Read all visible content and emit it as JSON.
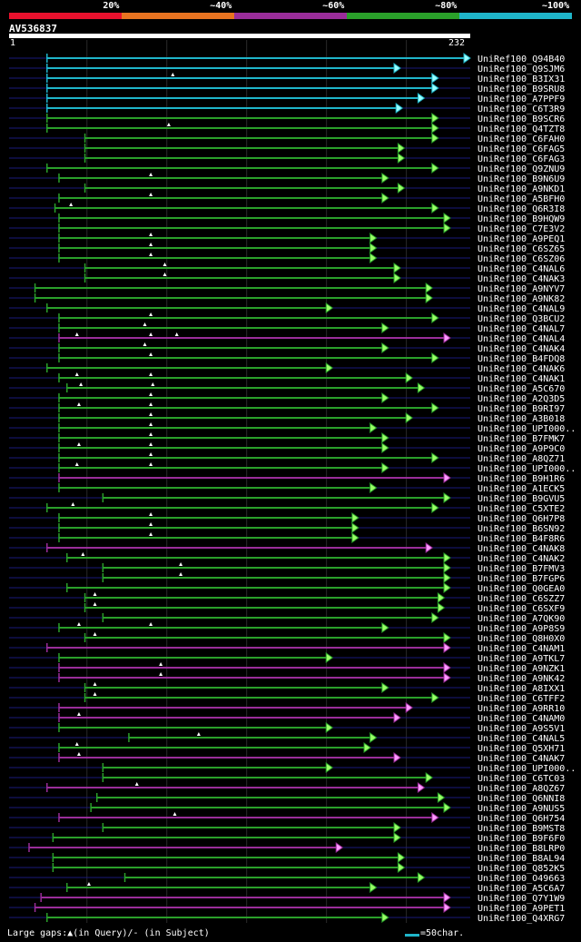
{
  "colors": {
    "bg": "#000000",
    "grid": "#2a2a2a",
    "baseline": "#1a1a7a",
    "c20": "#e8112d",
    "c40": "#e87320",
    "c60": "#9a2d9a",
    "c80": "#2aa02a",
    "c100": "#1fb5c9",
    "arrow_green": "#99ff66",
    "arrow_cyan": "#99ffff",
    "arrow_purple": "#ff99ff",
    "label": "#ffffff"
  },
  "legend": [
    {
      "label": "20%",
      "color": "c20"
    },
    {
      "label": "~40%",
      "color": "c40"
    },
    {
      "label": "~60%",
      "color": "c60"
    },
    {
      "label": "~80%",
      "color": "c80"
    },
    {
      "label": "~100%",
      "color": "c100"
    }
  ],
  "header": {
    "query_id": "AV536837",
    "ruler_start": "1",
    "ruler_end": "232"
  },
  "footer": {
    "gaps_label": "Large gaps:",
    "gaps_query": "(in Query)/",
    "gaps_subject": "- (in Subject)",
    "scale_label": "=50char."
  },
  "chart_data": {
    "type": "alignment",
    "query_length": 232,
    "axis_range": [
      1,
      232
    ],
    "grid_ticks": [
      40,
      80,
      120,
      160,
      200
    ],
    "hits": [
      {
        "name": "UniRef100_Q94B40",
        "start": 20,
        "end": 232,
        "identity": "c100",
        "gaps": []
      },
      {
        "name": "UniRef100_Q9SJM6",
        "start": 20,
        "end": 197,
        "identity": "c100",
        "gaps": []
      },
      {
        "name": "UniRef100_B3IX31",
        "start": 20,
        "end": 216,
        "identity": "c100",
        "gaps": [
          83
        ]
      },
      {
        "name": "UniRef100_B9SRU8",
        "start": 20,
        "end": 216,
        "identity": "c100",
        "gaps": []
      },
      {
        "name": "UniRef100_A7PPF9",
        "start": 20,
        "end": 209,
        "identity": "c100",
        "gaps": []
      },
      {
        "name": "UniRef100_C6T3R9",
        "start": 20,
        "end": 198,
        "identity": "c100",
        "gaps": []
      },
      {
        "name": "UniRef100_B9SCR6",
        "start": 20,
        "end": 216,
        "identity": "c80",
        "gaps": []
      },
      {
        "name": "UniRef100_Q4TZT8",
        "start": 20,
        "end": 216,
        "identity": "c80",
        "gaps": [
          81
        ]
      },
      {
        "name": "UniRef100_C6FAH0",
        "start": 39,
        "end": 216,
        "identity": "c80",
        "gaps": []
      },
      {
        "name": "UniRef100_C6FAG5",
        "start": 39,
        "end": 199,
        "identity": "c80",
        "gaps": []
      },
      {
        "name": "UniRef100_C6FAG3",
        "start": 39,
        "end": 199,
        "identity": "c80",
        "gaps": []
      },
      {
        "name": "UniRef100_Q9ZNU9",
        "start": 20,
        "end": 216,
        "identity": "c80",
        "gaps": []
      },
      {
        "name": "UniRef100_B9N6U9",
        "start": 26,
        "end": 191,
        "identity": "c80",
        "gaps": [
          72
        ]
      },
      {
        "name": "UniRef100_A9NKD1",
        "start": 39,
        "end": 199,
        "identity": "c80",
        "gaps": []
      },
      {
        "name": "UniRef100_A5BFH0",
        "start": 26,
        "end": 191,
        "identity": "c80",
        "gaps": [
          72
        ]
      },
      {
        "name": "UniRef100_Q6R3I8",
        "start": 24,
        "end": 216,
        "identity": "c80",
        "gaps": [
          32
        ]
      },
      {
        "name": "UniRef100_B9HQW9",
        "start": 26,
        "end": 222,
        "identity": "c80",
        "gaps": []
      },
      {
        "name": "UniRef100_C7E3V2",
        "start": 26,
        "end": 222,
        "identity": "c80",
        "gaps": []
      },
      {
        "name": "UniRef100_A9PEQ1",
        "start": 26,
        "end": 185,
        "identity": "c80",
        "gaps": [
          72
        ]
      },
      {
        "name": "UniRef100_C6SZ65",
        "start": 26,
        "end": 185,
        "identity": "c80",
        "gaps": [
          72
        ]
      },
      {
        "name": "UniRef100_C6SZ06",
        "start": 26,
        "end": 185,
        "identity": "c80",
        "gaps": [
          72
        ]
      },
      {
        "name": "UniRef100_C4NAL6",
        "start": 39,
        "end": 197,
        "identity": "c80",
        "gaps": [
          79
        ]
      },
      {
        "name": "UniRef100_C4NAK3",
        "start": 39,
        "end": 197,
        "identity": "c80",
        "gaps": [
          79
        ]
      },
      {
        "name": "UniRef100_A9NYV7",
        "start": 14,
        "end": 213,
        "identity": "c80",
        "gaps": []
      },
      {
        "name": "UniRef100_A9NK82",
        "start": 14,
        "end": 213,
        "identity": "c80",
        "gaps": []
      },
      {
        "name": "UniRef100_C4NAL9",
        "start": 20,
        "end": 163,
        "identity": "c80",
        "gaps": []
      },
      {
        "name": "UniRef100_Q3BCU2",
        "start": 26,
        "end": 216,
        "identity": "c80",
        "gaps": [
          72
        ]
      },
      {
        "name": "UniRef100_C4NAL7",
        "start": 26,
        "end": 191,
        "identity": "c80",
        "gaps": [
          69
        ]
      },
      {
        "name": "UniRef100_C4NAL4",
        "start": 26,
        "end": 222,
        "identity": "c60",
        "gaps": [
          35,
          72,
          85
        ]
      },
      {
        "name": "UniRef100_C4NAK4",
        "start": 26,
        "end": 191,
        "identity": "c80",
        "gaps": [
          69
        ]
      },
      {
        "name": "UniRef100_B4FDQ8",
        "start": 26,
        "end": 216,
        "identity": "c80",
        "gaps": [
          72
        ]
      },
      {
        "name": "UniRef100_C4NAK6",
        "start": 20,
        "end": 163,
        "identity": "c80",
        "gaps": []
      },
      {
        "name": "UniRef100_C4NAK1",
        "start": 26,
        "end": 203,
        "identity": "c80",
        "gaps": [
          35,
          72
        ]
      },
      {
        "name": "UniRef100_A5C670",
        "start": 30,
        "end": 209,
        "identity": "c80",
        "gaps": [
          37,
          73
        ]
      },
      {
        "name": "UniRef100_A2Q3D5",
        "start": 26,
        "end": 191,
        "identity": "c80",
        "gaps": [
          72
        ]
      },
      {
        "name": "UniRef100_B9RI97",
        "start": 26,
        "end": 216,
        "identity": "c80",
        "gaps": [
          36,
          72
        ]
      },
      {
        "name": "UniRef100_A3B018",
        "start": 26,
        "end": 203,
        "identity": "c80",
        "gaps": [
          72
        ]
      },
      {
        "name": "UniRef100_UPI000..",
        "start": 26,
        "end": 185,
        "identity": "c80",
        "gaps": [
          72
        ]
      },
      {
        "name": "UniRef100_B7FMK7",
        "start": 26,
        "end": 191,
        "identity": "c80",
        "gaps": [
          72
        ]
      },
      {
        "name": "UniRef100_A9P9C0",
        "start": 26,
        "end": 191,
        "identity": "c80",
        "gaps": [
          36,
          72
        ]
      },
      {
        "name": "UniRef100_A8QZ71",
        "start": 26,
        "end": 216,
        "identity": "c80",
        "gaps": [
          72
        ]
      },
      {
        "name": "UniRef100_UPI000..",
        "start": 26,
        "end": 191,
        "identity": "c80",
        "gaps": [
          35,
          72
        ]
      },
      {
        "name": "UniRef100_B9H1R6",
        "start": 26,
        "end": 222,
        "identity": "c60",
        "gaps": []
      },
      {
        "name": "UniRef100_A1ECK5",
        "start": 26,
        "end": 185,
        "identity": "c80",
        "gaps": []
      },
      {
        "name": "UniRef100_B9GVU5",
        "start": 48,
        "end": 222,
        "identity": "c80",
        "gaps": []
      },
      {
        "name": "UniRef100_C5XTE2",
        "start": 20,
        "end": 216,
        "identity": "c80",
        "gaps": [
          33
        ]
      },
      {
        "name": "UniRef100_Q6H7P8",
        "start": 26,
        "end": 176,
        "identity": "c80",
        "gaps": [
          72
        ]
      },
      {
        "name": "UniRef100_B6SN92",
        "start": 26,
        "end": 176,
        "identity": "c80",
        "gaps": [
          72
        ]
      },
      {
        "name": "UniRef100_B4F8R6",
        "start": 26,
        "end": 176,
        "identity": "c80",
        "gaps": [
          72
        ]
      },
      {
        "name": "UniRef100_C4NAK8",
        "start": 20,
        "end": 213,
        "identity": "c60",
        "gaps": []
      },
      {
        "name": "UniRef100_C4NAK2",
        "start": 30,
        "end": 222,
        "identity": "c80",
        "gaps": [
          38
        ]
      },
      {
        "name": "UniRef100_B7FMV3",
        "start": 48,
        "end": 222,
        "identity": "c80",
        "gaps": [
          87
        ]
      },
      {
        "name": "UniRef100_B7FGP6",
        "start": 48,
        "end": 222,
        "identity": "c80",
        "gaps": [
          87
        ]
      },
      {
        "name": "UniRef100_Q0GEA0",
        "start": 30,
        "end": 222,
        "identity": "c80",
        "gaps": []
      },
      {
        "name": "UniRef100_C6SZZ7",
        "start": 39,
        "end": 219,
        "identity": "c80",
        "gaps": [
          44
        ]
      },
      {
        "name": "UniRef100_C6SXF9",
        "start": 39,
        "end": 219,
        "identity": "c80",
        "gaps": [
          44
        ]
      },
      {
        "name": "UniRef100_A7QK90",
        "start": 48,
        "end": 216,
        "identity": "c80",
        "gaps": []
      },
      {
        "name": "UniRef100_A9P8S9",
        "start": 26,
        "end": 191,
        "identity": "c80",
        "gaps": [
          36,
          72
        ]
      },
      {
        "name": "UniRef100_Q8H0X0",
        "start": 39,
        "end": 222,
        "identity": "c80",
        "gaps": [
          44
        ]
      },
      {
        "name": "UniRef100_C4NAM1",
        "start": 20,
        "end": 222,
        "identity": "c60",
        "gaps": []
      },
      {
        "name": "UniRef100_A9TKL7",
        "start": 26,
        "end": 163,
        "identity": "c80",
        "gaps": []
      },
      {
        "name": "UniRef100_A9NZK1",
        "start": 26,
        "end": 222,
        "identity": "c60",
        "gaps": [
          77
        ]
      },
      {
        "name": "UniRef100_A9NK42",
        "start": 26,
        "end": 222,
        "identity": "c60",
        "gaps": [
          77
        ]
      },
      {
        "name": "UniRef100_A8IXX1",
        "start": 39,
        "end": 191,
        "identity": "c80",
        "gaps": [
          44
        ]
      },
      {
        "name": "UniRef100_C6TFF2",
        "start": 39,
        "end": 216,
        "identity": "c80",
        "gaps": [
          44
        ]
      },
      {
        "name": "UniRef100_A9RR10",
        "start": 26,
        "end": 203,
        "identity": "c60",
        "gaps": []
      },
      {
        "name": "UniRef100_C4NAM0",
        "start": 26,
        "end": 197,
        "identity": "c60",
        "gaps": [
          36
        ]
      },
      {
        "name": "UniRef100_A9S5V1",
        "start": 26,
        "end": 163,
        "identity": "c80",
        "gaps": []
      },
      {
        "name": "UniRef100_C4NAL5",
        "start": 61,
        "end": 185,
        "identity": "c80",
        "gaps": [
          96
        ]
      },
      {
        "name": "UniRef100_Q5XH71",
        "start": 26,
        "end": 182,
        "identity": "c80",
        "gaps": [
          35
        ]
      },
      {
        "name": "UniRef100_C4NAK7",
        "start": 26,
        "end": 197,
        "identity": "c60",
        "gaps": [
          36
        ]
      },
      {
        "name": "UniRef100_UPI000..",
        "start": 48,
        "end": 163,
        "identity": "c80",
        "gaps": []
      },
      {
        "name": "UniRef100_C6TC03",
        "start": 48,
        "end": 213,
        "identity": "c80",
        "gaps": []
      },
      {
        "name": "UniRef100_A8QZ67",
        "start": 20,
        "end": 209,
        "identity": "c60",
        "gaps": [
          65
        ]
      },
      {
        "name": "UniRef100_Q6NNI8",
        "start": 45,
        "end": 219,
        "identity": "c80",
        "gaps": []
      },
      {
        "name": "UniRef100_A9NUS5",
        "start": 42,
        "end": 222,
        "identity": "c80",
        "gaps": []
      },
      {
        "name": "UniRef100_Q6H754",
        "start": 26,
        "end": 216,
        "identity": "c60",
        "gaps": [
          84
        ]
      },
      {
        "name": "UniRef100_B9MST8",
        "start": 48,
        "end": 197,
        "identity": "c80",
        "gaps": []
      },
      {
        "name": "UniRef100_B9F6F0",
        "start": 23,
        "end": 197,
        "identity": "c80",
        "gaps": []
      },
      {
        "name": "UniRef100_B8LRP0",
        "start": 11,
        "end": 168,
        "identity": "c60",
        "gaps": []
      },
      {
        "name": "UniRef100_B8AL94",
        "start": 23,
        "end": 199,
        "identity": "c80",
        "gaps": []
      },
      {
        "name": "UniRef100_Q852K5",
        "start": 23,
        "end": 199,
        "identity": "c80",
        "gaps": []
      },
      {
        "name": "UniRef100_O49663",
        "start": 59,
        "end": 209,
        "identity": "c80",
        "gaps": []
      },
      {
        "name": "UniRef100_A5C6A7",
        "start": 30,
        "end": 185,
        "identity": "c80",
        "gaps": [
          41
        ]
      },
      {
        "name": "UniRef100_Q7Y1W9",
        "start": 17,
        "end": 222,
        "identity": "c60",
        "gaps": []
      },
      {
        "name": "UniRef100_A9PET1",
        "start": 14,
        "end": 222,
        "identity": "c60",
        "gaps": []
      },
      {
        "name": "UniRef100_Q4XRG7",
        "start": 20,
        "end": 191,
        "identity": "c80",
        "gaps": []
      }
    ]
  }
}
